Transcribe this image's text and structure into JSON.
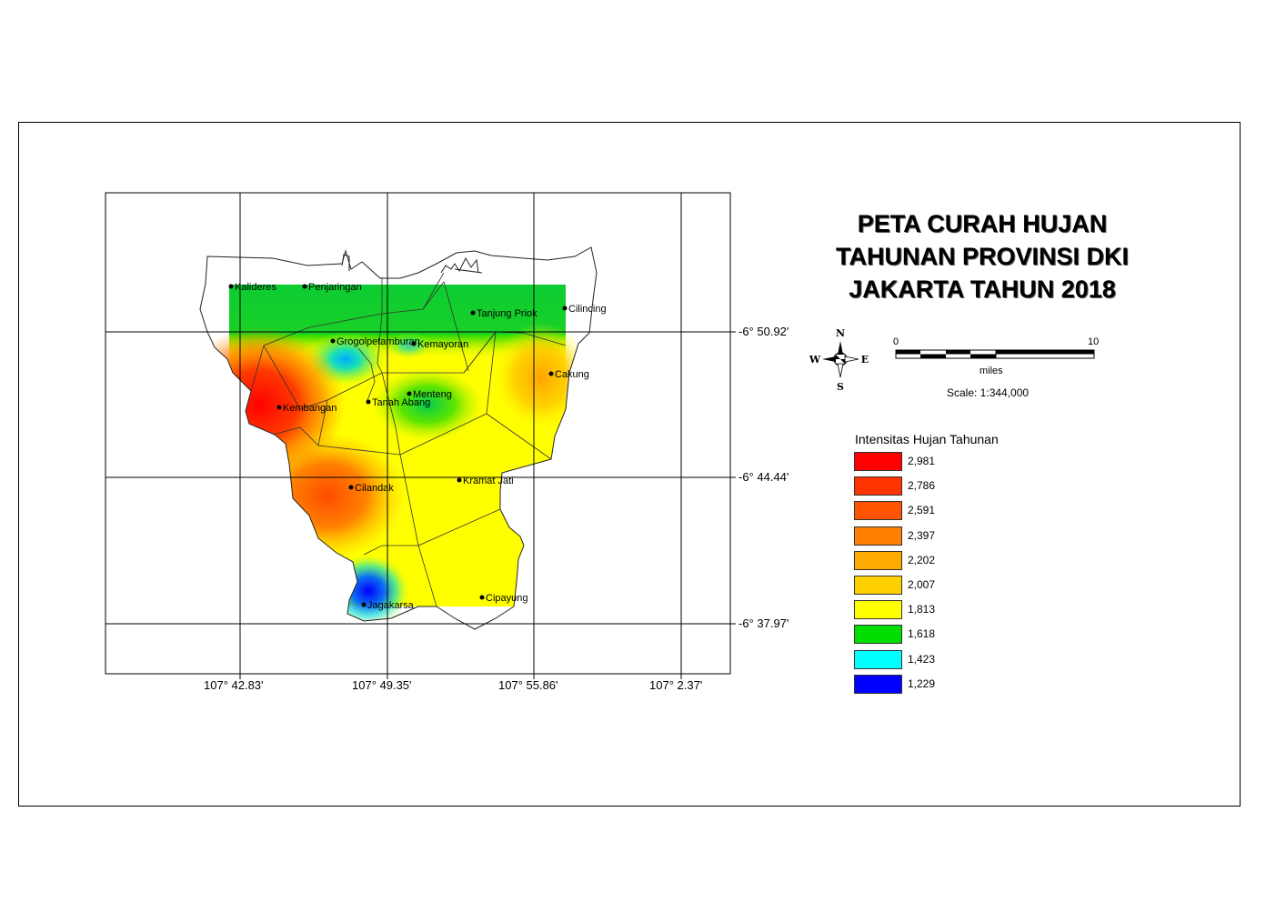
{
  "title": {
    "line1": "PETA CURAH HUJAN",
    "line2": "TAHUNAN PROVINSI DKI",
    "line3": "JAKARTA TAHUN 2018"
  },
  "legend": {
    "title": "Intensitas Hujan Tahunan",
    "classes": [
      {
        "label": "2,981",
        "color": "#ff0000"
      },
      {
        "label": "2,786",
        "color": "#ff3300"
      },
      {
        "label": "2,591",
        "color": "#ff5500"
      },
      {
        "label": "2,397",
        "color": "#ff8000"
      },
      {
        "label": "2,202",
        "color": "#ffaa00"
      },
      {
        "label": "2,007",
        "color": "#ffd000"
      },
      {
        "label": "1,813",
        "color": "#ffff00"
      },
      {
        "label": "1,618",
        "color": "#00dd00"
      },
      {
        "label": "1,423",
        "color": "#00ffff"
      },
      {
        "label": "1,229",
        "color": "#0000ff"
      }
    ]
  },
  "north_arrow": {
    "n": "N",
    "s": "S",
    "e": "E",
    "w": "W"
  },
  "scale_bar": {
    "start": "0",
    "end": "10",
    "unit": "miles",
    "scale_text": "Scale: 1:344,000"
  },
  "grid": {
    "x_labels": [
      "107° 42.83'",
      "107° 49.35'",
      "107° 55.86'",
      "107° 2.37'"
    ],
    "y_labels": [
      "-6° 50.92'",
      "-6° 44.44'",
      "-6° 37.97'"
    ]
  },
  "places": [
    {
      "name": "Kalideres"
    },
    {
      "name": "Penjaringan"
    },
    {
      "name": "Tanjung Priok"
    },
    {
      "name": "Cilincing"
    },
    {
      "name": "Grogolpetamburan"
    },
    {
      "name": "Kemayoran"
    },
    {
      "name": "Cakung"
    },
    {
      "name": "Kembangan"
    },
    {
      "name": "Tanah Abang"
    },
    {
      "name": "Menteng"
    },
    {
      "name": "Cilandak"
    },
    {
      "name": "Kramat Jati"
    },
    {
      "name": "Jagakarsa"
    },
    {
      "name": "Cipayung"
    }
  ]
}
